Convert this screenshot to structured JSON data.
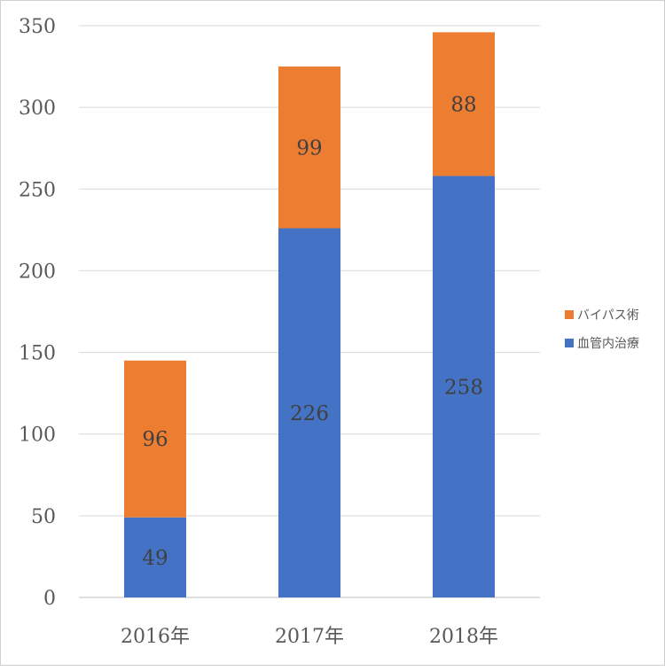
{
  "chart_data": {
    "type": "bar",
    "stacked": true,
    "categories": [
      "2016年",
      "2017年",
      "2018年"
    ],
    "series": [
      {
        "name": "血管内治療",
        "values": [
          49,
          226,
          258
        ],
        "color": "#4472C4"
      },
      {
        "name": "バイパス術",
        "values": [
          96,
          99,
          88
        ],
        "color": "#ED7D31"
      }
    ],
    "ylim": [
      0,
      350
    ],
    "yticks": [
      0,
      50,
      100,
      150,
      200,
      250,
      300,
      350
    ],
    "grid": true,
    "legend_position": "right",
    "legend_order": [
      "バイパス術",
      "血管内治療"
    ],
    "data_labels": true
  }
}
